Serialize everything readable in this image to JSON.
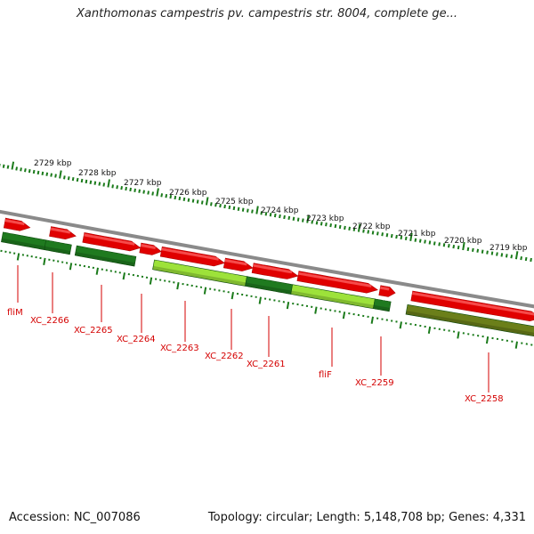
{
  "title": "Xanthomonas campestris pv. campestris str. 8004, complete ge...",
  "accession_text": "Accession: NC_007086",
  "summary_text": "Topology: circular; Length: 5,148,708 bp; Genes: 4,331",
  "colors": {
    "forward_gene": "#e00000",
    "reverse_gene": "#1f7a1f",
    "reverse_gene_light": "#9de23a",
    "reverse_gene_olive": "#6b7f1a",
    "backbone": "#8a8a8a",
    "tick": "#1a7a1a",
    "label": "#d40000"
  },
  "scale_labels": [
    "2729 kbp",
    "2728 kbp",
    "2727 kbp",
    "2726 kbp",
    "2725 kbp",
    "2724 kbp",
    "2723 kbp",
    "2722 kbp",
    "2721 kbp",
    "2720 kbp",
    "2719 kbp"
  ],
  "gene_labels": [
    "fliM",
    "XC_2266",
    "XC_2265",
    "XC_2264",
    "XC_2263",
    "XC_2262",
    "XC_2261",
    "fliF",
    "XC_2259",
    "XC_2258"
  ],
  "forward_genes": [
    {
      "name": "forward-gene-1",
      "start": 0.0,
      "end": 0.05
    },
    {
      "name": "forward-gene-2",
      "start": 0.09,
      "end": 0.14
    },
    {
      "name": "forward-gene-3",
      "start": 0.155,
      "end": 0.265
    },
    {
      "name": "forward-gene-4",
      "start": 0.265,
      "end": 0.305
    },
    {
      "name": "forward-gene-5",
      "start": 0.305,
      "end": 0.425
    },
    {
      "name": "forward-gene-6",
      "start": 0.425,
      "end": 0.478
    },
    {
      "name": "forward-gene-7",
      "start": 0.478,
      "end": 0.562
    },
    {
      "name": "forward-gene-8",
      "start": 0.562,
      "end": 0.708
    },
    {
      "name": "forward-gene-9",
      "start": 0.712,
      "end": 0.74
    },
    {
      "name": "forward-gene-10",
      "start": 0.77,
      "end": 1.0
    }
  ],
  "reverse_genes": [
    {
      "name": "reverse-gene-1",
      "start": 0.0,
      "end": 0.085,
      "tone": "reverse_gene"
    },
    {
      "name": "reverse-gene-2",
      "start": 0.085,
      "end": 0.135,
      "tone": "reverse_gene"
    },
    {
      "name": "reverse-gene-3",
      "start": 0.145,
      "end": 0.26,
      "tone": "reverse_gene"
    },
    {
      "name": "reverse-gene-4",
      "start": 0.295,
      "end": 0.47,
      "tone": "reverse_gene_light"
    },
    {
      "name": "reverse-gene-5",
      "start": 0.47,
      "end": 0.555,
      "tone": "reverse_gene"
    },
    {
      "name": "reverse-gene-6",
      "start": 0.555,
      "end": 0.706,
      "tone": "reverse_gene_light"
    },
    {
      "name": "reverse-gene-7",
      "start": 0.706,
      "end": 0.735,
      "tone": "reverse_gene"
    },
    {
      "name": "reverse-gene-8",
      "start": 0.765,
      "end": 1.0,
      "tone": "reverse_gene_olive"
    }
  ]
}
